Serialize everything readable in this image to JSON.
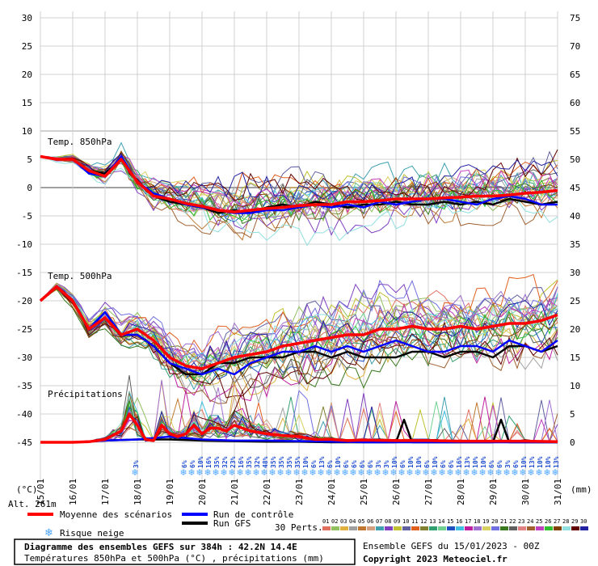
{
  "chart_data": {
    "type": "line",
    "title": "Diagramme des ensembles GEFS sur 384h : 42.2N 14.4E",
    "subtitle": "Températures 850hPa et 500hPa (°C) , précipitations (mm)",
    "run_info": "Ensemble GEFS du 15/01/2023 - 00Z",
    "copyright": "Copyright 2023 Meteociel.fr",
    "altitude": "Alt. 261m",
    "y_left_unit": "(°C)",
    "y_right_unit": "(mm)",
    "y_left_ticks": [
      30,
      25,
      20,
      15,
      10,
      5,
      0,
      -5,
      -10,
      -15,
      -20,
      -25,
      -30,
      -35,
      -40,
      -45
    ],
    "y_right_ticks": [
      75,
      70,
      65,
      60,
      55,
      50,
      45,
      40,
      35,
      30,
      25,
      20,
      15,
      10,
      5,
      0
    ],
    "ylim": [
      -45,
      30
    ],
    "x_ticks": [
      "15/01",
      "16/01",
      "17/01",
      "18/01",
      "19/01",
      "20/01",
      "21/01",
      "22/01",
      "23/01",
      "24/01",
      "25/01",
      "26/01",
      "27/01",
      "28/01",
      "29/01",
      "30/01",
      "31/01"
    ],
    "grid": true,
    "section_labels": {
      "t850": "Temp. 850hPa",
      "t500": "Temp. 500hPa",
      "precip": "Précipitations"
    },
    "legend": {
      "mean": "Moyenne des scénarios",
      "control": "Run de contrôle",
      "gfs": "Run GFS",
      "snow": "Risque neige",
      "perts": "30 Perts."
    },
    "colors": {
      "mean": "#ff0000",
      "control": "#0000ff",
      "gfs": "#000000",
      "snow": "#4da6ff",
      "pct": "#1f4fd1"
    },
    "member_labels": [
      "01",
      "02",
      "03",
      "04",
      "05",
      "06",
      "07",
      "08",
      "09",
      "10",
      "11",
      "12",
      "13",
      "14",
      "15",
      "16",
      "17",
      "18",
      "19",
      "20",
      "21",
      "22",
      "23",
      "24",
      "25",
      "26",
      "27",
      "28",
      "29",
      "30"
    ],
    "member_colors": [
      "#e07060",
      "#90c060",
      "#e0b040",
      "#a0a0a0",
      "#c07830",
      "#d0a080",
      "#40a0b0",
      "#8040c0",
      "#c0c030",
      "#6060a0",
      "#e06020",
      "#808030",
      "#30a070",
      "#70d090",
      "#2050c0",
      "#40c0e0",
      "#c020a0",
      "#a070d0",
      "#d8d060",
      "#7070e0",
      "#3a7a20",
      "#606060",
      "#e08080",
      "#a06030",
      "#c040c0",
      "#30c030",
      "#804000",
      "#90e0e0",
      "#600000",
      "#2020a0"
    ],
    "snow_risk": [
      {
        "day": 3.0,
        "pct": "3%"
      },
      {
        "day": 4.5,
        "pct": "6%"
      },
      {
        "day": 4.75,
        "pct": "6%"
      },
      {
        "day": 5.0,
        "pct": "10%"
      },
      {
        "day": 5.25,
        "pct": "16%"
      },
      {
        "day": 5.5,
        "pct": "35%"
      },
      {
        "day": 5.75,
        "pct": "32%"
      },
      {
        "day": 6.0,
        "pct": "23%"
      },
      {
        "day": 6.25,
        "pct": "16%"
      },
      {
        "day": 6.5,
        "pct": "35%"
      },
      {
        "day": 6.75,
        "pct": "32%"
      },
      {
        "day": 7.0,
        "pct": "48%"
      },
      {
        "day": 7.25,
        "pct": "35%"
      },
      {
        "day": 7.5,
        "pct": "35%"
      },
      {
        "day": 7.75,
        "pct": "35%"
      },
      {
        "day": 8.0,
        "pct": "35%"
      },
      {
        "day": 8.25,
        "pct": "10%"
      },
      {
        "day": 8.5,
        "pct": "6%"
      },
      {
        "day": 8.75,
        "pct": "13%"
      },
      {
        "day": 9.0,
        "pct": "6%"
      },
      {
        "day": 9.25,
        "pct": "10%"
      },
      {
        "day": 9.5,
        "pct": "6%"
      },
      {
        "day": 9.75,
        "pct": "6%"
      },
      {
        "day": 10.0,
        "pct": "6%"
      },
      {
        "day": 10.25,
        "pct": "6%"
      },
      {
        "day": 10.5,
        "pct": "3%"
      },
      {
        "day": 10.75,
        "pct": "3%"
      },
      {
        "day": 11.0,
        "pct": "10%"
      },
      {
        "day": 11.25,
        "pct": "6%"
      },
      {
        "day": 11.5,
        "pct": "10%"
      },
      {
        "day": 11.75,
        "pct": "10%"
      },
      {
        "day": 12.0,
        "pct": "6%"
      },
      {
        "day": 12.25,
        "pct": "10%"
      },
      {
        "day": 12.5,
        "pct": "6%"
      },
      {
        "day": 12.75,
        "pct": "6%"
      },
      {
        "day": 13.0,
        "pct": "16%"
      },
      {
        "day": 13.25,
        "pct": "13%"
      },
      {
        "day": 13.5,
        "pct": "10%"
      },
      {
        "day": 13.75,
        "pct": "10%"
      },
      {
        "day": 14.0,
        "pct": "6%"
      },
      {
        "day": 14.25,
        "pct": "6%"
      },
      {
        "day": 14.5,
        "pct": "3%"
      },
      {
        "day": 14.75,
        "pct": "6%"
      },
      {
        "day": 15.0,
        "pct": "10%"
      },
      {
        "day": 15.25,
        "pct": "13%"
      },
      {
        "day": 15.5,
        "pct": "10%"
      },
      {
        "day": 15.75,
        "pct": "10%"
      },
      {
        "day": 16.0,
        "pct": "13%"
      }
    ],
    "series": [
      {
        "name": "Moyenne des scénarios",
        "group": "t850",
        "role": "mean",
        "x": [
          0,
          0.5,
          1,
          1.5,
          2,
          2.5,
          3,
          3.5,
          4,
          4.5,
          5,
          5.5,
          6,
          6.5,
          7,
          7.5,
          8,
          8.5,
          9,
          9.5,
          10,
          10.5,
          11,
          11.5,
          12,
          12.5,
          13,
          13.5,
          14,
          14.5,
          15,
          15.5,
          16
        ],
        "values": [
          5.5,
          5,
          5,
          3,
          2,
          5,
          1,
          -1.5,
          -2,
          -2.8,
          -3.3,
          -4,
          -4.3,
          -4,
          -3.7,
          -3.5,
          -3.2,
          -3,
          -3,
          -2.5,
          -2.5,
          -2.3,
          -2,
          -2,
          -2,
          -1.8,
          -1.7,
          -1.5,
          -1.5,
          -1.3,
          -1,
          -0.8,
          -0.5
        ]
      },
      {
        "name": "Run de contrôle",
        "group": "t850",
        "role": "control",
        "x": [
          0,
          0.5,
          1,
          1.5,
          2,
          2.5,
          3,
          3.5,
          4,
          4.5,
          5,
          5.5,
          6,
          6.5,
          7,
          7.5,
          8,
          8.5,
          9,
          9.5,
          10,
          10.5,
          11,
          11.5,
          12,
          12.5,
          13,
          13.5,
          14,
          14.5,
          15,
          15.5,
          16
        ],
        "values": [
          5.5,
          5,
          5,
          2.5,
          2,
          5.5,
          1,
          -1,
          -2,
          -3,
          -3.5,
          -4,
          -4.5,
          -4.5,
          -4,
          -4,
          -3.5,
          -3,
          -3.5,
          -3,
          -3.5,
          -2.5,
          -3,
          -2.5,
          -2,
          -2,
          -2.5,
          -3,
          -2,
          -1.5,
          -2,
          -3,
          -3
        ]
      },
      {
        "name": "Run GFS",
        "group": "t850",
        "role": "gfs",
        "x": [
          0,
          0.5,
          1,
          1.5,
          2,
          2.5,
          3,
          3.5,
          4,
          4.5,
          5,
          5.5,
          6,
          6.5,
          7,
          7.5,
          8,
          8.5,
          9,
          9.5,
          10,
          10.5,
          11,
          11.5,
          12,
          12.5,
          13,
          13.5,
          14,
          14.5,
          15,
          15.5,
          16
        ],
        "values": [
          5.5,
          5,
          5,
          3,
          2.5,
          5,
          1,
          -1.5,
          -2.5,
          -3,
          -3.5,
          -4.5,
          -4,
          -4.5,
          -3.5,
          -3,
          -3.5,
          -2.5,
          -3,
          -3.5,
          -3,
          -3,
          -2.5,
          -3,
          -3,
          -2.5,
          -3,
          -2.5,
          -3,
          -2,
          -2.5,
          -3,
          -2.5
        ]
      },
      {
        "name": "Moyenne des scénarios",
        "group": "t500",
        "role": "mean",
        "x": [
          0,
          0.5,
          1,
          1.5,
          2,
          2.5,
          3,
          3.5,
          4,
          4.5,
          5,
          5.5,
          6,
          6.5,
          7,
          7.5,
          8,
          8.5,
          9,
          9.5,
          10,
          10.5,
          11,
          11.5,
          12,
          12.5,
          13,
          13.5,
          14,
          14.5,
          15,
          15.5,
          16
        ],
        "values": [
          -20,
          -17.5,
          -20,
          -25,
          -23,
          -26,
          -25,
          -27,
          -30,
          -31.5,
          -32,
          -31,
          -30,
          -29.5,
          -29,
          -28,
          -27.5,
          -27,
          -26.5,
          -26,
          -26,
          -25,
          -25,
          -24.5,
          -25,
          -25,
          -24.5,
          -25,
          -24.5,
          -24,
          -24,
          -23.5,
          -22.5
        ]
      },
      {
        "name": "Run de contrôle",
        "group": "t500",
        "role": "control",
        "x": [
          0,
          0.5,
          1,
          1.5,
          2,
          2.5,
          3,
          3.5,
          4,
          4.5,
          5,
          5.5,
          6,
          6.5,
          7,
          7.5,
          8,
          8.5,
          9,
          9.5,
          10,
          10.5,
          11,
          11.5,
          12,
          12.5,
          13,
          13.5,
          14,
          14.5,
          15,
          15.5,
          16
        ],
        "values": [
          -20,
          -17.5,
          -20,
          -25,
          -22,
          -26,
          -26,
          -28,
          -31,
          -32,
          -33,
          -32,
          -33,
          -31,
          -30,
          -29,
          -29,
          -28,
          -29,
          -28,
          -29,
          -28,
          -27,
          -28,
          -29,
          -29,
          -28,
          -28,
          -29,
          -27,
          -28,
          -29,
          -27
        ]
      },
      {
        "name": "Run GFS",
        "group": "t500",
        "role": "gfs",
        "x": [
          0,
          0.5,
          1,
          1.5,
          2,
          2.5,
          3,
          3.5,
          4,
          4.5,
          5,
          5.5,
          6,
          6.5,
          7,
          7.5,
          8,
          8.5,
          9,
          9.5,
          10,
          10.5,
          11,
          11.5,
          12,
          12.5,
          13,
          13.5,
          14,
          14.5,
          15,
          15.5,
          16
        ],
        "values": [
          -20,
          -17.5,
          -20,
          -25,
          -22,
          -26,
          -26,
          -28,
          -31,
          -33,
          -33,
          -31,
          -31,
          -30,
          -30,
          -30,
          -29,
          -29,
          -30,
          -29,
          -30,
          -30,
          -30,
          -29,
          -29,
          -30,
          -29,
          -29,
          -30,
          -28,
          -28,
          -29,
          -28
        ]
      },
      {
        "name": "Moyenne des scénarios",
        "group": "precip",
        "role": "mean",
        "x": [
          0,
          0.5,
          1,
          1.5,
          2,
          2.5,
          2.75,
          3,
          3.25,
          3.5,
          3.75,
          4,
          4.25,
          4.5,
          4.75,
          5,
          5.25,
          5.5,
          5.75,
          6,
          6.5,
          7,
          7.5,
          8,
          8.5,
          9,
          9.5,
          10,
          11,
          12,
          13,
          14,
          15,
          16
        ],
        "values": [
          0,
          0,
          0,
          0.1,
          0.5,
          2,
          5,
          3,
          0.5,
          0.3,
          3,
          1.5,
          1,
          1.5,
          3,
          1.5,
          2.5,
          2.5,
          2,
          3,
          2,
          1.5,
          1.2,
          1,
          0.5,
          0.5,
          0.3,
          0.4,
          0.3,
          0.3,
          0.2,
          0.2,
          0.2,
          0.1
        ]
      },
      {
        "name": "Run de contrôle",
        "group": "precip",
        "role": "control",
        "x": [
          0,
          1,
          2,
          3,
          4,
          5,
          6,
          7,
          8,
          9,
          10,
          11,
          12,
          13,
          14,
          15,
          16
        ],
        "values": [
          0,
          0,
          0.3,
          0.5,
          1,
          0.5,
          0.3,
          0.3,
          0.2,
          0.1,
          0,
          0,
          0,
          0,
          0,
          0,
          0
        ]
      },
      {
        "name": "Run GFS",
        "group": "precip",
        "role": "gfs",
        "x": [
          0,
          1,
          2,
          3,
          4,
          5,
          6,
          7,
          8,
          9,
          10,
          11,
          11.25,
          11.5,
          12,
          12.5,
          13,
          13.5,
          14,
          14.25,
          14.5,
          15,
          15.5,
          16
        ],
        "values": [
          0,
          0,
          0.3,
          0.5,
          0.5,
          0.3,
          0.2,
          0.1,
          0.1,
          0,
          0,
          0,
          4,
          0,
          0,
          0,
          0,
          0,
          0,
          4,
          0,
          0,
          0,
          0
        ]
      }
    ]
  }
}
